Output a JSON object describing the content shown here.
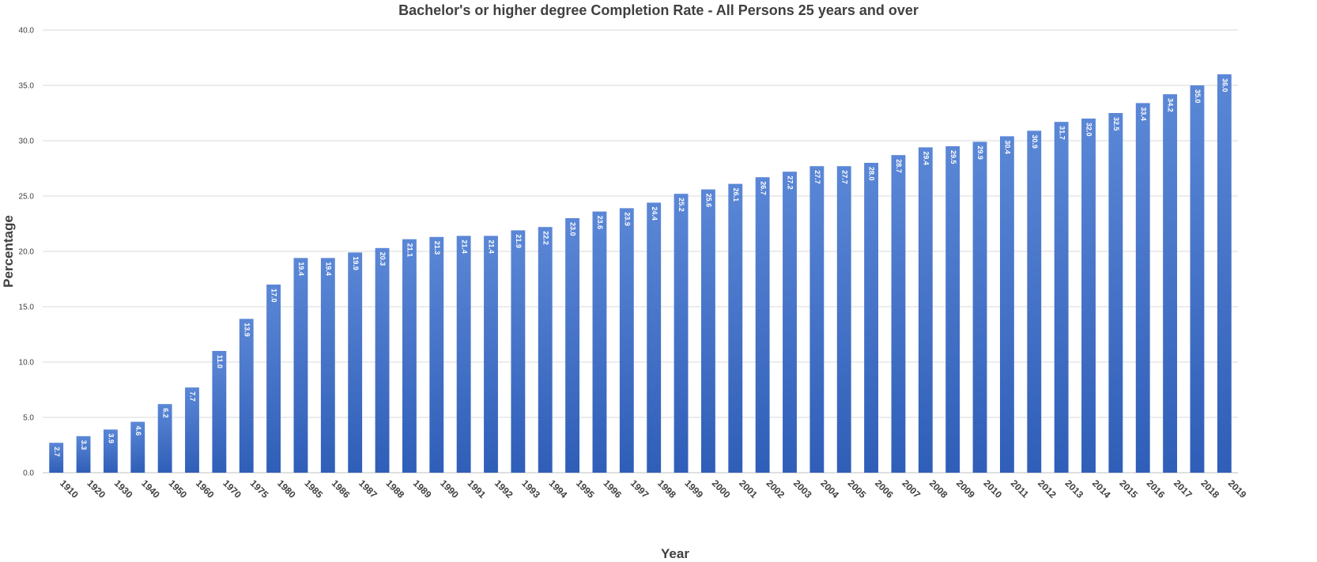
{
  "chart_data": {
    "type": "bar",
    "title": "Bachelor's or higher degree Completion  Rate - All Persons 25 years and over",
    "xlabel": "Year",
    "ylabel": "Percentage",
    "ylim": [
      0,
      40
    ],
    "yticks": [
      "0.0",
      "5.0",
      "10.0",
      "15.0",
      "20.0",
      "25.0",
      "30.0",
      "35.0",
      "40.0"
    ],
    "grid": true,
    "legend": "none",
    "bar_color": "#4472c4",
    "categories": [
      "1910",
      "1920",
      "1930",
      "1940",
      "1950",
      "1960",
      "1970",
      "1975",
      "1980",
      "1985",
      "1986",
      "1987",
      "1988",
      "1989",
      "1990",
      "1991",
      "1992",
      "1993",
      "1994",
      "1995",
      "1996",
      "1997",
      "1998",
      "1999",
      "2000",
      "2001",
      "2002",
      "2003",
      "2004",
      "2005",
      "2006",
      "2007",
      "2008",
      "2009",
      "2010",
      "2011",
      "2012",
      "2013",
      "2014",
      "2015",
      "2016",
      "2017",
      "2018",
      "2019"
    ],
    "values": [
      2.7,
      3.3,
      3.9,
      4.6,
      6.2,
      7.7,
      11.0,
      13.9,
      17.0,
      19.4,
      19.4,
      19.9,
      20.3,
      21.1,
      21.3,
      21.4,
      21.4,
      21.9,
      22.2,
      23.0,
      23.6,
      23.9,
      24.4,
      25.2,
      25.6,
      26.1,
      26.7,
      27.2,
      27.7,
      27.7,
      28.0,
      28.7,
      29.4,
      29.5,
      29.9,
      30.4,
      30.9,
      31.7,
      32.0,
      32.5,
      33.4,
      34.2,
      35.0,
      36.0
    ],
    "labels": [
      "2.7",
      "3.3",
      "3.9",
      "4.6",
      "6.2",
      "7.7",
      "11.0",
      "13.9",
      "17.0",
      "19.4",
      "19.4",
      "19.9",
      "20.3",
      "21.1",
      "21.3",
      "21.4",
      "21.4",
      "21.9",
      "22.2",
      "23.0",
      "23.6",
      "23.9",
      "24.4",
      "25.2",
      "25.6",
      "26.1",
      "26.7",
      "27.2",
      "27.7",
      "27.7",
      "28.0",
      "28.7",
      "29.4",
      "29.5",
      "29.9",
      "30.4",
      "30.9",
      "31.7",
      "32.0",
      "32.5",
      "33.4",
      "34.2",
      "35.0",
      "36.0"
    ]
  }
}
